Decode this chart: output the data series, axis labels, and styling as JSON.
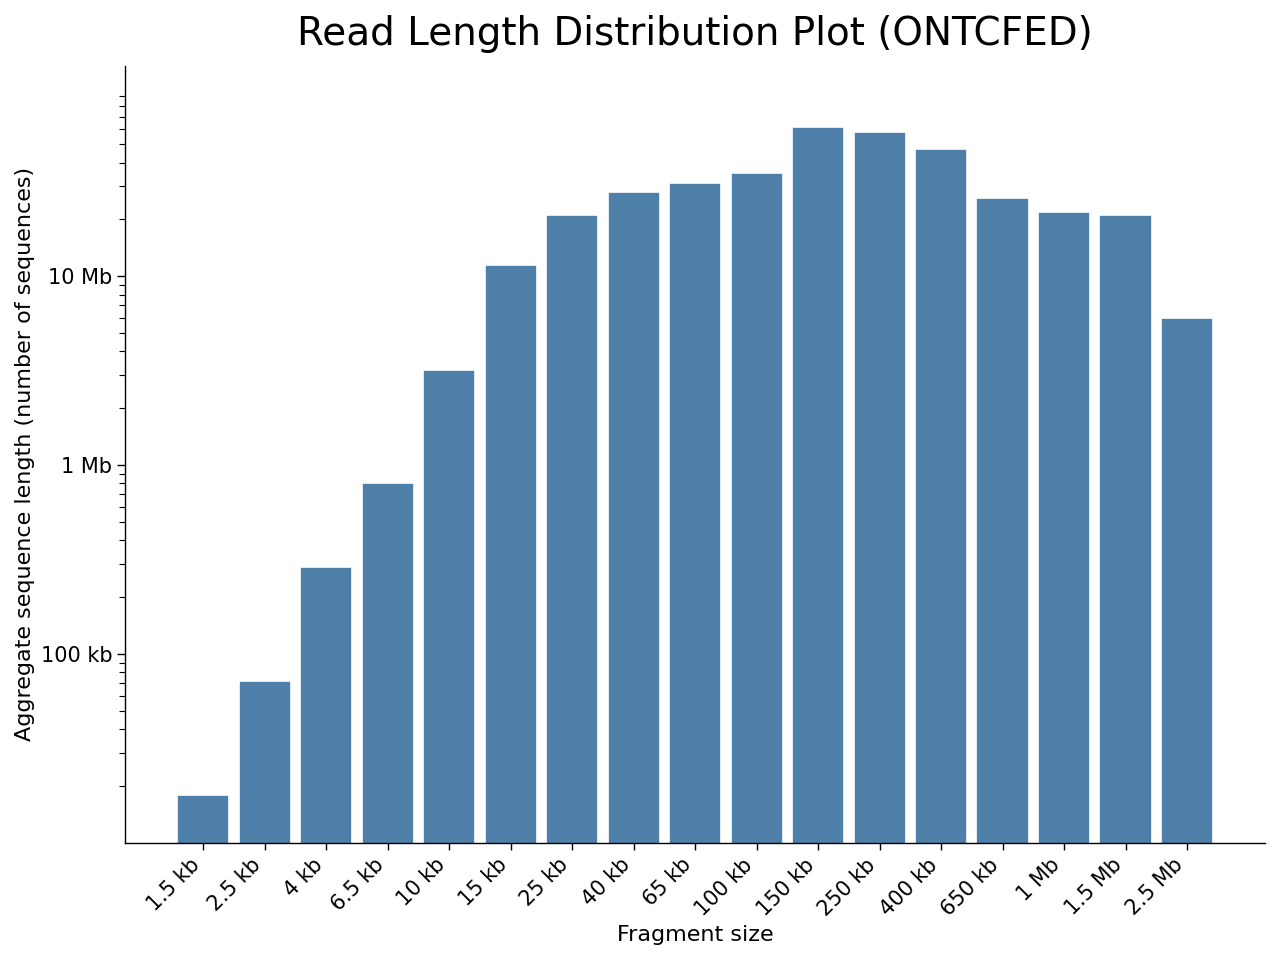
{
  "title": "Read Length Distribution Plot (ONTCFED)",
  "xlabel": "Fragment size",
  "ylabel": "Aggregate sequence length (number of sequences)",
  "categories": [
    "1.5 kb",
    "2.5 kb",
    "4 kb",
    "6.5 kb",
    "10 kb",
    "15 kb",
    "25 kb",
    "40 kb",
    "65 kb",
    "100 kb",
    "150 kb",
    "250 kb",
    "400 kb",
    "650 kb",
    "1 Mb",
    "1.5 Mb",
    "2.5 Mb"
  ],
  "values": [
    18000,
    72000,
    290000,
    800000,
    3200000,
    11500000,
    21000000,
    28000000,
    31000000,
    35000000,
    62000000,
    58000000,
    47000000,
    26000000,
    22000000,
    21000000,
    6000000
  ],
  "bar_color": "#4e7fa8",
  "bar_edge_color": "white",
  "ylim_min": 10000,
  "ylim_max": 130000000,
  "yticks": [
    100000,
    1000000,
    10000000
  ],
  "ytick_labels": [
    "100 kb",
    "1 Mb",
    "10 Mb"
  ],
  "background_color": "white",
  "title_fontsize": 28,
  "axis_label_fontsize": 16,
  "tick_fontsize": 15
}
